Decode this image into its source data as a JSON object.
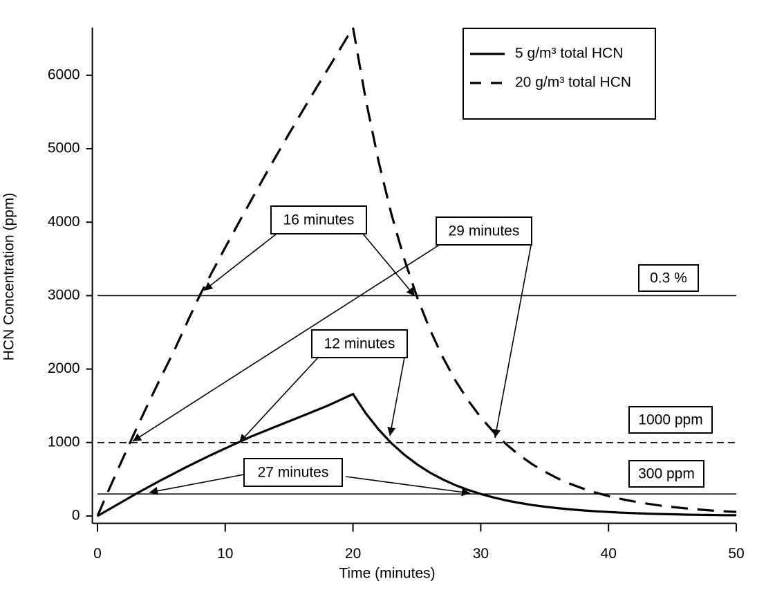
{
  "chart_data": {
    "type": "line",
    "xlabel": "Time (minutes)",
    "ylabel": "HCN Concentration (ppm)",
    "x": [
      0,
      1,
      2,
      3,
      4,
      5,
      6,
      7,
      8,
      9,
      10,
      11,
      12,
      13,
      14,
      15,
      16,
      17,
      18,
      19,
      20,
      21,
      22,
      23,
      24,
      25,
      26,
      27,
      28,
      29,
      30,
      31,
      32,
      33,
      34,
      35,
      36,
      37,
      38,
      39,
      40,
      41,
      42,
      43,
      44,
      45,
      46,
      47,
      48,
      49,
      50
    ],
    "series": [
      {
        "name": "5 g/m³ total HCN",
        "color": "#000",
        "dash": false,
        "values": [
          0,
          100,
          200,
          300,
          395,
          490,
          580,
          670,
          755,
          840,
          920,
          1000,
          1080,
          1150,
          1220,
          1290,
          1360,
          1430,
          1500,
          1580,
          1660,
          1398,
          1178,
          992,
          836,
          704,
          593,
          500,
          421,
          355,
          299,
          252,
          212,
          179,
          150,
          127,
          107,
          90,
          76,
          64,
          54,
          45,
          38,
          32,
          27,
          23,
          19,
          16,
          14,
          11,
          10
        ]
      },
      {
        "name": "20 g/m³ total HCN",
        "color": "#000",
        "dash": true,
        "values": [
          0,
          400,
          790,
          1170,
          1540,
          1900,
          2250,
          2630,
          3000,
          3330,
          3655,
          3975,
          4290,
          4600,
          4905,
          5205,
          5500,
          5790,
          6075,
          6360,
          6650,
          5667,
          4829,
          4115,
          3507,
          2988,
          2547,
          2170,
          1849,
          1576,
          1343,
          1145,
          975,
          831,
          708,
          604,
          514,
          438,
          374,
          318,
          271,
          231,
          197,
          168,
          143,
          122,
          104,
          89,
          75,
          64,
          55
        ]
      }
    ],
    "reference_lines": [
      {
        "value": 3000,
        "dash": false,
        "label": "0.3 %"
      },
      {
        "value": 1000,
        "dash": true,
        "label": "1000 ppm"
      },
      {
        "value": 300,
        "dash": false,
        "label": "300 ppm"
      }
    ],
    "annotations": [
      "16 minutes",
      "29 minutes",
      "12 minutes",
      "27 minutes"
    ],
    "xlim": [
      -0.4,
      50
    ],
    "xticks": [
      0,
      10,
      20,
      30,
      40,
      50
    ],
    "ylim": [
      -100,
      6650
    ],
    "yticks": [
      0,
      1000,
      2000,
      3000,
      4000,
      5000,
      6000
    ],
    "legend": "top-right"
  }
}
